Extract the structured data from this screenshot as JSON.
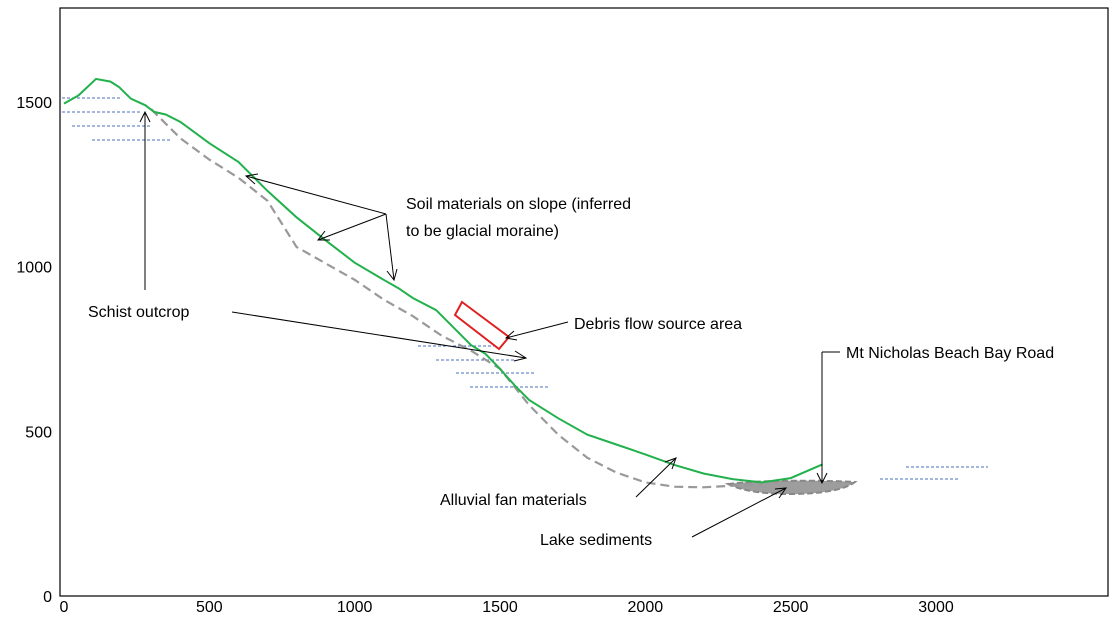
{
  "chart_data": {
    "type": "line",
    "title": "",
    "xlabel": "",
    "ylabel": "",
    "xlim": [
      0,
      3300
    ],
    "ylim": [
      0,
      1800
    ],
    "x_ticks": [
      0,
      500,
      1000,
      1500,
      2000,
      2500,
      3000
    ],
    "y_ticks": [
      0,
      500,
      1000,
      1500
    ],
    "x_tick_labels": [
      "0",
      "500",
      "1000",
      "1500",
      "2000",
      "2500",
      "3000"
    ],
    "y_tick_labels": [
      "0",
      "500",
      "1000",
      "1500"
    ],
    "grid": false,
    "series": [
      {
        "color": "#22b14c",
        "style": "solid",
        "points": [
          [
            0,
            1495
          ],
          [
            50,
            1520
          ],
          [
            110,
            1570
          ],
          [
            160,
            1562
          ],
          [
            190,
            1545
          ],
          [
            230,
            1510
          ],
          [
            280,
            1490
          ],
          [
            310,
            1470
          ],
          [
            350,
            1462
          ],
          [
            400,
            1440
          ],
          [
            500,
            1375
          ],
          [
            600,
            1318
          ],
          [
            700,
            1230
          ],
          [
            800,
            1150
          ],
          [
            900,
            1080
          ],
          [
            1000,
            1012
          ],
          [
            1100,
            960
          ],
          [
            1150,
            935
          ],
          [
            1200,
            905
          ],
          [
            1280,
            868
          ],
          [
            1400,
            762
          ],
          [
            1450,
            735
          ],
          [
            1500,
            690
          ],
          [
            1550,
            640
          ],
          [
            1600,
            595
          ],
          [
            1700,
            540
          ],
          [
            1800,
            490
          ],
          [
            1900,
            460
          ],
          [
            2000,
            430
          ],
          [
            2100,
            398
          ],
          [
            2200,
            372
          ],
          [
            2300,
            355
          ],
          [
            2400,
            345
          ],
          [
            2500,
            358
          ],
          [
            2610,
            400
          ]
        ]
      },
      {
        "color": "#999999",
        "style": "dashed",
        "points": [
          [
            300,
            1478
          ],
          [
            400,
            1390
          ],
          [
            500,
            1325
          ],
          [
            600,
            1270
          ],
          [
            700,
            1200
          ],
          [
            800,
            1060
          ],
          [
            900,
            1010
          ],
          [
            1000,
            960
          ],
          [
            1100,
            900
          ],
          [
            1200,
            850
          ],
          [
            1300,
            790
          ],
          [
            1400,
            745
          ],
          [
            1500,
            690
          ],
          [
            1600,
            580
          ],
          [
            1700,
            490
          ],
          [
            1800,
            420
          ],
          [
            1900,
            375
          ],
          [
            2000,
            345
          ],
          [
            2100,
            332
          ],
          [
            2200,
            330
          ],
          [
            2300,
            335
          ],
          [
            2400,
            338
          ]
        ]
      }
    ],
    "annotations": [
      {
        "text": "Schist outcrop"
      },
      {
        "text": "Soil materials on slope (inferred"
      },
      {
        "text": "to be glacial moraine)"
      },
      {
        "text": "Debris flow source area"
      },
      {
        "text": "Mt Nicholas Beach Bay Road"
      },
      {
        "text": "Alluvial fan materials"
      },
      {
        "text": "Lake sediments"
      }
    ],
    "lake_sediment_fill_color": "#9d9d9d",
    "source_box_color": "#e02020",
    "water_level_color": "#4a6fbf",
    "arrow_color": "#000000"
  }
}
